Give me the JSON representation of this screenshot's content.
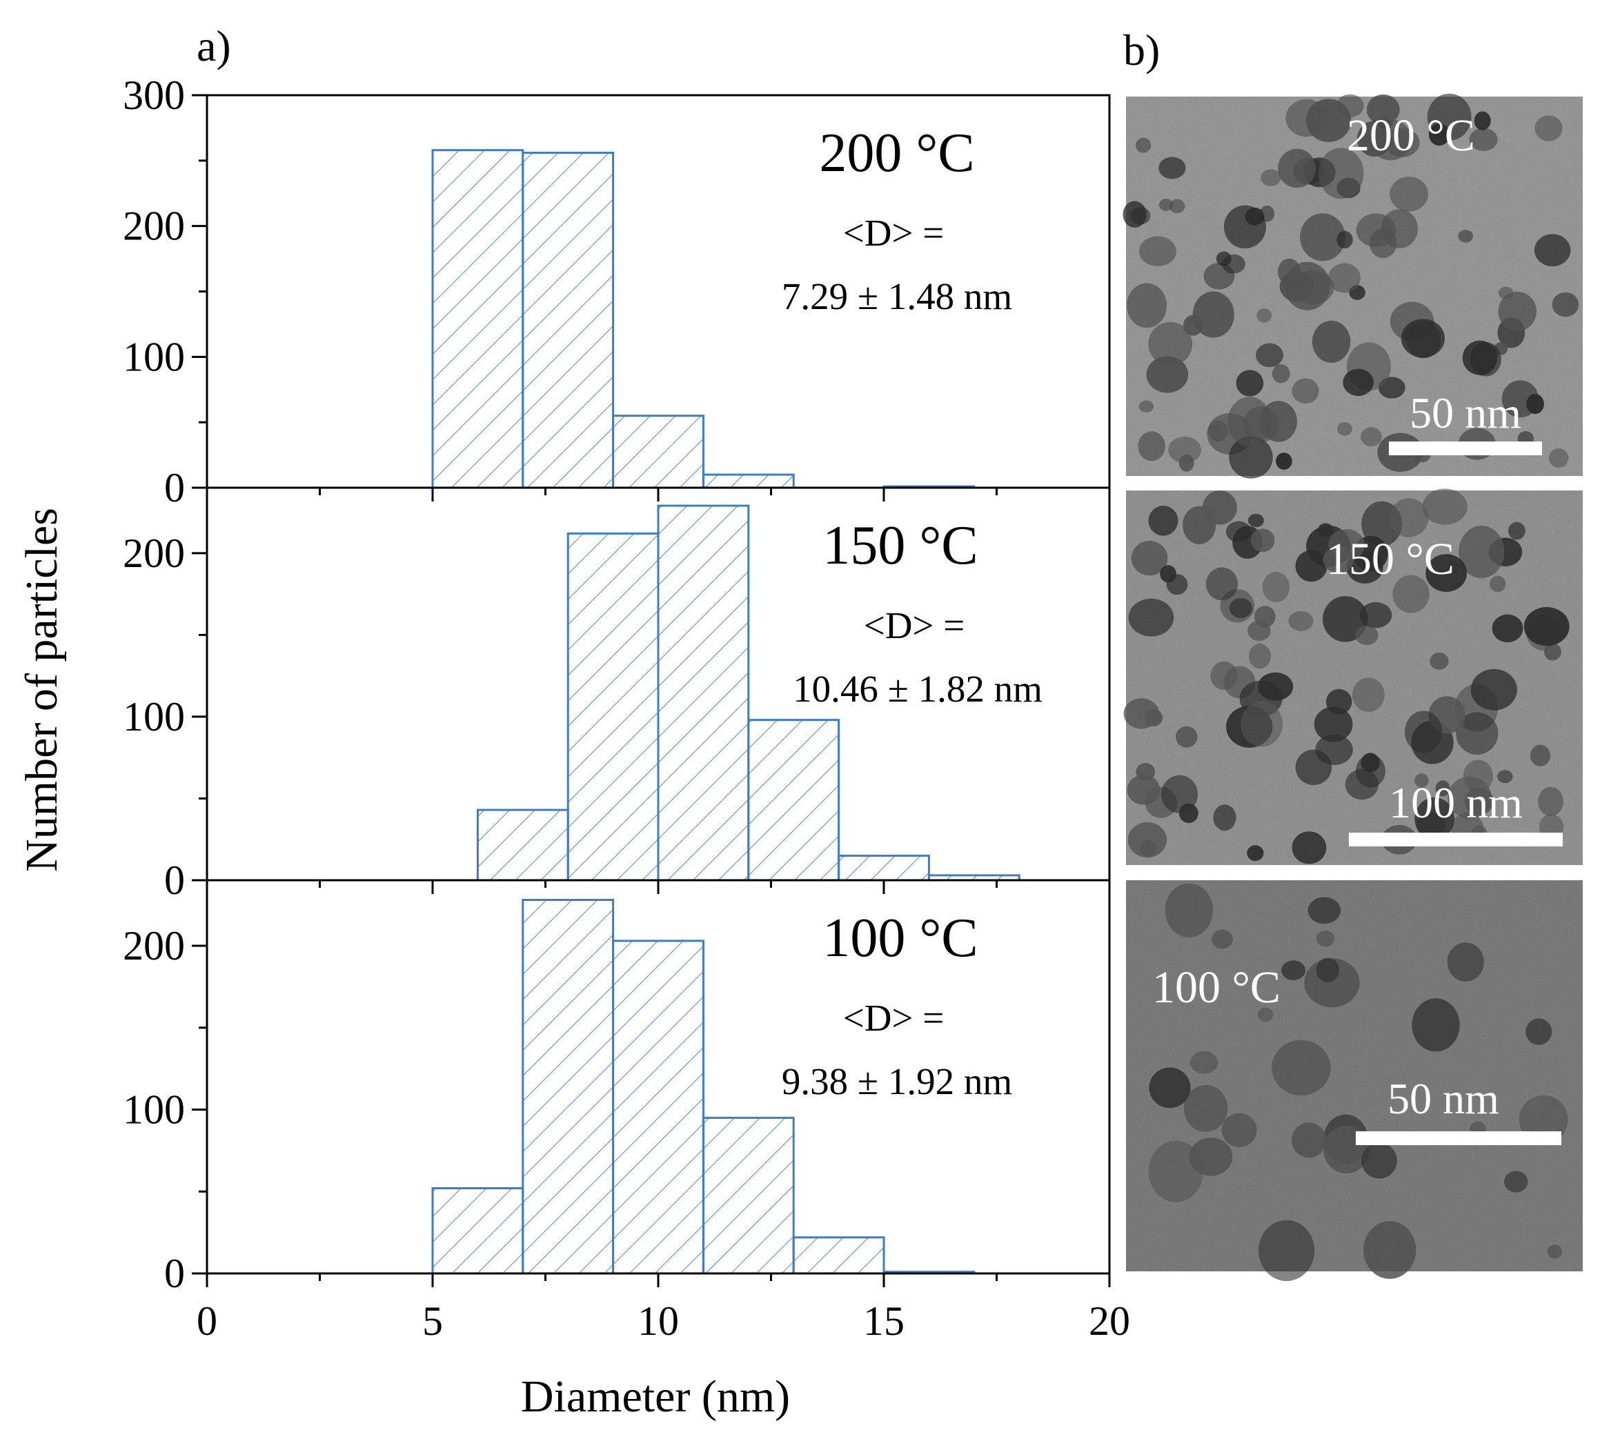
{
  "panel_labels": {
    "a": "a)",
    "b": "b)"
  },
  "colors": {
    "bar_stroke": "#3f7cc4",
    "bar_hatch": "#5b8fcc",
    "tem_background": "#8c8c8c",
    "tem_particle": "#3a3a3a"
  },
  "chart_data": [
    {
      "type": "bar",
      "subtype": "histogram",
      "panel": "200 °C",
      "title": "",
      "xlabel": "Diameter (nm)",
      "ylabel": "Number of particles",
      "xlim": [
        0,
        20
      ],
      "ylim": [
        0,
        300
      ],
      "xticks": [
        0,
        5,
        10,
        15,
        20
      ],
      "yticks": [
        0,
        100,
        200,
        300
      ],
      "bin_width": 2,
      "bins": [
        {
          "x0": 5,
          "x1": 7,
          "count": 258
        },
        {
          "x0": 7,
          "x1": 9,
          "count": 256
        },
        {
          "x0": 9,
          "x1": 11,
          "count": 55
        },
        {
          "x0": 11,
          "x1": 13,
          "count": 10
        },
        {
          "x0": 13,
          "x1": 15,
          "count": 0
        },
        {
          "x0": 15,
          "x1": 17,
          "count": 1
        }
      ],
      "annotation": {
        "temperature": "200 °C",
        "mean_label": "<D> =",
        "mean_value": "7.29 ± 1.48 nm"
      }
    },
    {
      "type": "bar",
      "subtype": "histogram",
      "panel": "150 °C",
      "title": "",
      "xlabel": "Diameter (nm)",
      "ylabel": "Number of particles",
      "xlim": [
        0,
        20
      ],
      "ylim": [
        0,
        240
      ],
      "xticks": [
        0,
        5,
        10,
        15,
        20
      ],
      "yticks": [
        0,
        100,
        200
      ],
      "bin_width": 2,
      "bins": [
        {
          "x0": 6,
          "x1": 8,
          "count": 43
        },
        {
          "x0": 8,
          "x1": 10,
          "count": 212
        },
        {
          "x0": 10,
          "x1": 12,
          "count": 229
        },
        {
          "x0": 12,
          "x1": 14,
          "count": 98
        },
        {
          "x0": 14,
          "x1": 16,
          "count": 15
        },
        {
          "x0": 16,
          "x1": 18,
          "count": 3
        }
      ],
      "annotation": {
        "temperature": "150 °C",
        "mean_label": "<D> =",
        "mean_value": "10.46 ± 1.82 nm"
      }
    },
    {
      "type": "bar",
      "subtype": "histogram",
      "panel": "100 °C",
      "title": "",
      "xlabel": "Diameter (nm)",
      "ylabel": "Number of particles",
      "xlim": [
        0,
        20
      ],
      "ylim": [
        0,
        240
      ],
      "xticks": [
        0,
        5,
        10,
        15,
        20
      ],
      "yticks": [
        0,
        100,
        200
      ],
      "bin_width": 2,
      "bins": [
        {
          "x0": 5,
          "x1": 7,
          "count": 52
        },
        {
          "x0": 7,
          "x1": 9,
          "count": 228
        },
        {
          "x0": 9,
          "x1": 11,
          "count": 203
        },
        {
          "x0": 11,
          "x1": 13,
          "count": 95
        },
        {
          "x0": 13,
          "x1": 15,
          "count": 22
        },
        {
          "x0": 15,
          "x1": 17,
          "count": 1
        }
      ],
      "annotation": {
        "temperature": "100 °C",
        "mean_label": "<D> =",
        "mean_value": "9.38 ± 1.92 nm"
      }
    }
  ],
  "tem_images": [
    {
      "temperature": "200 °C",
      "scale_bar": "50 nm",
      "tone": "light"
    },
    {
      "temperature": "150 °C",
      "scale_bar": "100 nm",
      "tone": "medium"
    },
    {
      "temperature": "100 °C",
      "scale_bar": "50 nm",
      "tone": "dark"
    }
  ]
}
